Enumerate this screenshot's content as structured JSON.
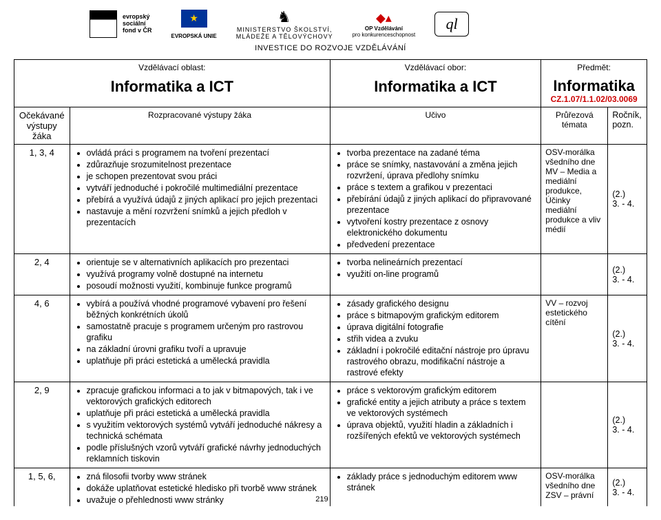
{
  "header": {
    "esf_lines": [
      "evropský",
      "sociální",
      "fond v ČR"
    ],
    "eu_label": "EVROPSKÁ UNIE",
    "ministry_lines": [
      "MINISTERSTVO ŠKOLSTVÍ,",
      "MLÁDEŽE A TĚLOVÝCHOVY"
    ],
    "op_lines": [
      "OP Vzdělávání",
      "pro konkurenceschopnost"
    ],
    "ql": "ql",
    "invest_line": "INVESTICE DO ROZVOJE VZDĚLÁVÁNÍ"
  },
  "table": {
    "top_labels": {
      "oblast": "Vzdělávací oblast:",
      "obor": "Vzdělávací obor:",
      "predmet": "Předmět:"
    },
    "titles": {
      "left": "Informatika a ICT",
      "mid": "Informatika a ICT",
      "right_big": "Informatika",
      "right_code": "CZ.1.07/1.1.02/03.0069"
    },
    "col_heads": {
      "idx": "Očekávané výstupy žáka",
      "out": "Rozpracované výstupy žáka",
      "cur": "Učivo",
      "tem": "Průřezová témata",
      "yr": "Ročník, pozn."
    },
    "rows": [
      {
        "idx": "1, 3, 4",
        "outcomes": [
          "ovládá práci s programem na tvoření prezentací",
          "zdůrazňuje srozumitelnost prezentace",
          "je schopen prezentovat svou práci",
          "vytváří jednoduché i pokročilé multimediální prezentace",
          "přebírá a využívá údajů z jiných aplikací pro jejich prezentaci",
          "nastavuje a mění rozvržení snímků a jejich předloh v prezentacích"
        ],
        "curriculum": [
          "tvorba prezentace na zadané téma",
          "práce se snímky, nastavování a změna jejich rozvržení, úprava předlohy snímku",
          "práce s textem a grafikou v prezentaci",
          "přebírání údajů z jiných aplikací do připravované prezentace",
          "vytvoření kostry prezentace z osnovy elektronického dokumentu",
          "předvedení prezentace"
        ],
        "themes": "OSV-morálka všedního dne\nMV – Media a mediální produkce, Účinky mediální produkce a vliv médií",
        "year": "(2.)\n3. - 4."
      },
      {
        "idx": "2, 4",
        "outcomes": [
          "orientuje se v alternativních aplikacích pro prezentaci",
          "využívá programy volně dostupné na internetu",
          "posoudí možnosti využití, kombinuje funkce programů"
        ],
        "curriculum": [
          "tvorba nelineárních prezentací",
          "využití on-line programů"
        ],
        "themes": "",
        "year": "(2.)\n3. - 4."
      },
      {
        "idx": "4, 6",
        "outcomes": [
          "vybírá a používá vhodné programové vybavení pro řešení běžných konkrétních úkolů",
          "samostatně pracuje s programem určeným pro rastrovou grafiku",
          "na základní úrovni grafiku tvoří a upravuje",
          "uplatňuje při práci estetická a umělecká pravidla"
        ],
        "curriculum": [
          "zásady grafického designu",
          "práce s bitmapovým grafickým editorem",
          "úprava digitální fotografie",
          "střih videa a zvuku",
          "základní i pokročilé editační nástroje pro úpravu rastrového obrazu, modifikační nástroje a rastrové efekty"
        ],
        "themes": "VV – rozvoj estetického cítění",
        "year": "(2.)\n3. - 4."
      },
      {
        "idx": "2, 9",
        "outcomes": [
          "zpracuje grafickou informaci a to jak v bitmapových, tak i ve vektorových grafických editorech",
          "uplatňuje při práci estetická a umělecká pravidla",
          "s využitím vektorových systémů vytváří jednoduché nákresy a technická schémata",
          "podle příslušných vzorů vytváří grafické návrhy jednoduchých reklamních tiskovin"
        ],
        "curriculum": [
          "práce s vektorovým grafickým editorem",
          "grafické entity a jejich atributy a práce s textem ve vektorových systémech",
          "úprava objektů, využití hladin a základních i rozšířených efektů ve vektorových systémech"
        ],
        "themes": "",
        "year": "(2.)\n3. - 4."
      },
      {
        "idx": "1, 5, 6,",
        "outcomes": [
          "zná filosofii tvorby www stránek",
          "dokáže uplatňovat estetické hledisko při tvorbě www stránek",
          "uvažuje o přehlednosti www stránky"
        ],
        "curriculum": [
          "základy práce s jednoduchým editorem www stránek"
        ],
        "themes": "OSV-morálka všedního dne\nZSV – právní",
        "year": "(2.)\n3. - 4.",
        "open_bottom": true,
        "page_num": "219"
      }
    ]
  }
}
